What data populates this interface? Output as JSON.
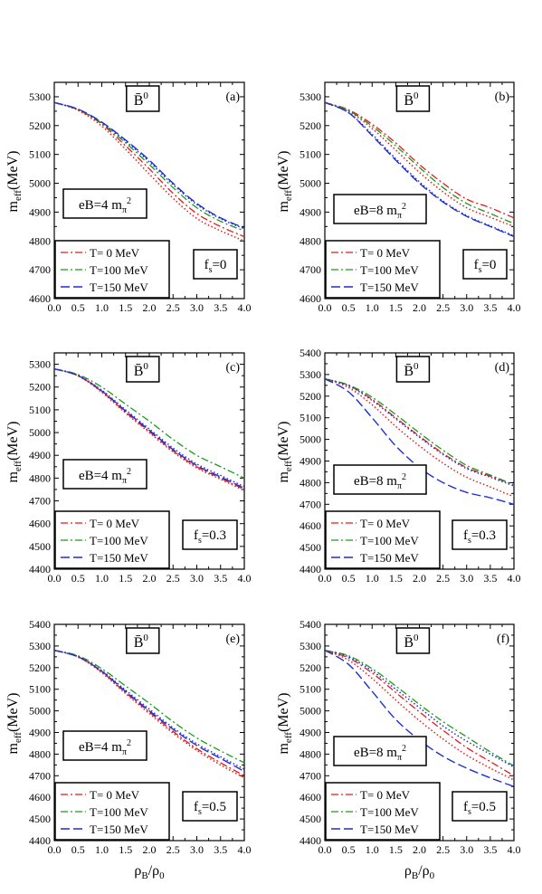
{
  "figure": {
    "xlabel": "ρB/ρ0",
    "ylabel": "meff(MeV)",
    "particle_label": "B̄0",
    "legend": [
      "T= 0 MeV",
      "T=100 MeV",
      "T=150 MeV"
    ],
    "series_colors": {
      "T= 0 MeV": "#e41a1c",
      "T=100 MeV": "#1a9a1a",
      "T=150 MeV": "#1f2fd0"
    }
  },
  "chart_data": [
    {
      "type": "line",
      "panel_label": "(a)",
      "eB_label": "eB=4 mπ2",
      "fs_label": "fs=0",
      "xlim": [
        0,
        4
      ],
      "ylim": [
        4600,
        5350
      ],
      "xticks": [
        "0.0",
        "0.5",
        "1.0",
        "1.5",
        "2.0",
        "2.5",
        "3.0",
        "3.5",
        "4.0"
      ],
      "yticks": [
        "4600",
        "4700",
        "4800",
        "4900",
        "5000",
        "5100",
        "5200",
        "5300"
      ],
      "x": [
        0,
        0.5,
        1.0,
        1.5,
        2.0,
        2.5,
        3.0,
        3.5,
        4.0
      ],
      "series": [
        {
          "name": "T= 0 MeV",
          "style": "dashdot",
          "values": [
            5280,
            5255,
            5205,
            5130,
            5050,
            4965,
            4895,
            4850,
            4815
          ]
        },
        {
          "name": "T=100 MeV",
          "style": "dashdot",
          "values": [
            5280,
            5256,
            5208,
            5140,
            5065,
            4985,
            4915,
            4868,
            4835
          ]
        },
        {
          "name": "T=150 MeV",
          "style": "dash",
          "values": [
            5280,
            5257,
            5212,
            5150,
            5080,
            5000,
            4930,
            4880,
            4845
          ]
        },
        {
          "name": "",
          "style": "dot",
          "values": [
            5280,
            5253,
            5198,
            5118,
            5032,
            4948,
            4878,
            4835,
            4800
          ]
        },
        {
          "name": "",
          "style": "dot",
          "values": [
            5280,
            5256,
            5210,
            5146,
            5074,
            4995,
            4926,
            4877,
            4842
          ]
        }
      ]
    },
    {
      "type": "line",
      "panel_label": "(b)",
      "eB_label": "eB=8 mπ2",
      "fs_label": "fs=0",
      "xlim": [
        0,
        4
      ],
      "ylim": [
        4600,
        5350
      ],
      "xticks": [
        "0.0",
        "0.5",
        "1.0",
        "1.5",
        "2.0",
        "2.5",
        "3.0",
        "3.5",
        "4.0"
      ],
      "yticks": [
        "4600",
        "4700",
        "4800",
        "4900",
        "5000",
        "5100",
        "5200",
        "5300"
      ],
      "x": [
        0,
        0.5,
        1.0,
        1.5,
        2.0,
        2.5,
        3.0,
        3.5,
        4.0
      ],
      "series": [
        {
          "name": "T= 0 MeV",
          "style": "dashdot",
          "values": [
            5280,
            5255,
            5205,
            5140,
            5065,
            5000,
            4945,
            4915,
            4880
          ]
        },
        {
          "name": "T=100 MeV",
          "style": "dashdot",
          "values": [
            5280,
            5252,
            5198,
            5130,
            5055,
            4985,
            4930,
            4895,
            4860
          ]
        },
        {
          "name": "T=150 MeV",
          "style": "dash",
          "values": [
            5280,
            5245,
            5165,
            5080,
            5000,
            4935,
            4885,
            4850,
            4815
          ]
        },
        {
          "name": "",
          "style": "dot",
          "values": [
            5280,
            5250,
            5190,
            5115,
            5038,
            4970,
            4915,
            4882,
            4850
          ]
        },
        {
          "name": "",
          "style": "dot",
          "values": [
            5280,
            5245,
            5170,
            5085,
            5005,
            4938,
            4888,
            4852,
            4818
          ]
        }
      ]
    },
    {
      "type": "line",
      "panel_label": "(c)",
      "eB_label": "eB=4 mπ2",
      "fs_label": "fs=0.3",
      "xlim": [
        0,
        4
      ],
      "ylim": [
        4400,
        5350
      ],
      "xticks": [
        "0.0",
        "0.5",
        "1.0",
        "1.5",
        "2.0",
        "2.5",
        "3.0",
        "3.5",
        "4.0"
      ],
      "yticks": [
        "4400",
        "4500",
        "4600",
        "4700",
        "4800",
        "4900",
        "5000",
        "5100",
        "5200",
        "5300"
      ],
      "x": [
        0,
        0.5,
        1.0,
        1.5,
        2.0,
        2.5,
        3.0,
        3.5,
        4.0
      ],
      "series": [
        {
          "name": "T= 0 MeV",
          "style": "dashdot",
          "values": [
            5280,
            5250,
            5180,
            5090,
            5005,
            4920,
            4850,
            4800,
            4750
          ]
        },
        {
          "name": "T=100 MeV",
          "style": "dashdot",
          "values": [
            5280,
            5255,
            5200,
            5125,
            5050,
            4970,
            4900,
            4850,
            4800
          ]
        },
        {
          "name": "T=150 MeV",
          "style": "dash",
          "values": [
            5280,
            5250,
            5183,
            5095,
            5010,
            4925,
            4855,
            4805,
            4755
          ]
        },
        {
          "name": "",
          "style": "dot",
          "values": [
            5280,
            5249,
            5177,
            5086,
            5000,
            4915,
            4845,
            4795,
            4745
          ]
        },
        {
          "name": "",
          "style": "dot",
          "values": [
            5280,
            5251,
            5186,
            5100,
            5016,
            4932,
            4862,
            4812,
            4762
          ]
        }
      ]
    },
    {
      "type": "line",
      "panel_label": "(d)",
      "eB_label": "eB=8 mπ2",
      "fs_label": "fs=0.3",
      "xlim": [
        0,
        4
      ],
      "ylim": [
        4400,
        5400
      ],
      "xticks": [
        "0.0",
        "0.5",
        "1.0",
        "1.5",
        "2.0",
        "2.5",
        "3.0",
        "3.5",
        "4.0"
      ],
      "yticks": [
        "4400",
        "4500",
        "4600",
        "4700",
        "4800",
        "4900",
        "5000",
        "5100",
        "5200",
        "5300",
        "5400"
      ],
      "x": [
        0,
        0.5,
        1.0,
        1.5,
        2.0,
        2.5,
        3.0,
        3.5,
        4.0
      ],
      "series": [
        {
          "name": "T= 0 MeV",
          "style": "dashdot",
          "values": [
            5280,
            5250,
            5185,
            5100,
            5015,
            4935,
            4870,
            4830,
            4790
          ]
        },
        {
          "name": "T=100 MeV",
          "style": "dashdot",
          "values": [
            5280,
            5252,
            5195,
            5115,
            5030,
            4950,
            4880,
            4835,
            4790
          ]
        },
        {
          "name": "T=150 MeV",
          "style": "dash",
          "values": [
            5280,
            5220,
            5100,
            4970,
            4870,
            4800,
            4755,
            4730,
            4700
          ]
        },
        {
          "name": "",
          "style": "dot",
          "values": [
            5280,
            5240,
            5160,
            5060,
            4970,
            4890,
            4825,
            4780,
            4735
          ]
        },
        {
          "name": "",
          "style": "dot",
          "values": [
            5280,
            5248,
            5180,
            5095,
            5010,
            4930,
            4865,
            4825,
            4785
          ]
        }
      ]
    },
    {
      "type": "line",
      "panel_label": "(e)",
      "eB_label": "eB=4 mπ2",
      "fs_label": "fs=0.5",
      "xlim": [
        0,
        4
      ],
      "ylim": [
        4400,
        5400
      ],
      "xticks": [
        "0.0",
        "0.5",
        "1.0",
        "1.5",
        "2.0",
        "2.5",
        "3.0",
        "3.5",
        "4.0"
      ],
      "yticks": [
        "4400",
        "4500",
        "4600",
        "4700",
        "4800",
        "4900",
        "5000",
        "5100",
        "5200",
        "5300",
        "5400"
      ],
      "x": [
        0,
        0.5,
        1.0,
        1.5,
        2.0,
        2.5,
        3.0,
        3.5,
        4.0
      ],
      "series": [
        {
          "name": "T= 0 MeV",
          "style": "dashdot",
          "values": [
            5280,
            5250,
            5180,
            5085,
            4995,
            4905,
            4825,
            4760,
            4700
          ]
        },
        {
          "name": "T=100 MeV",
          "style": "dashdot",
          "values": [
            5280,
            5255,
            5195,
            5115,
            5035,
            4950,
            4875,
            4815,
            4760
          ]
        },
        {
          "name": "T=150 MeV",
          "style": "dash",
          "values": [
            5280,
            5250,
            5183,
            5090,
            5000,
            4915,
            4840,
            4780,
            4720
          ]
        },
        {
          "name": "",
          "style": "dot",
          "values": [
            5280,
            5249,
            5176,
            5080,
            4988,
            4897,
            4817,
            4750,
            4690
          ]
        },
        {
          "name": "",
          "style": "dot",
          "values": [
            5280,
            5251,
            5186,
            5096,
            5008,
            4922,
            4848,
            4788,
            4730
          ]
        }
      ]
    },
    {
      "type": "line",
      "panel_label": "(f)",
      "eB_label": "eB=8 mπ2",
      "fs_label": "fs=0.5",
      "xlim": [
        0,
        4
      ],
      "ylim": [
        4400,
        5400
      ],
      "xticks": [
        "0.0",
        "0.5",
        "1.0",
        "1.5",
        "2.0",
        "2.5",
        "3.0",
        "3.5",
        "4.0"
      ],
      "yticks": [
        "4400",
        "4500",
        "4600",
        "4700",
        "4800",
        "4900",
        "5000",
        "5100",
        "5200",
        "5300",
        "5400"
      ],
      "x": [
        0,
        0.5,
        1.0,
        1.5,
        2.0,
        2.5,
        3.0,
        3.5,
        4.0
      ],
      "series": [
        {
          "name": "T= 0 MeV",
          "style": "dashdot",
          "values": [
            5280,
            5245,
            5175,
            5085,
            4995,
            4910,
            4830,
            4765,
            4700
          ]
        },
        {
          "name": "T=100 MeV",
          "style": "dashdot",
          "values": [
            5280,
            5255,
            5195,
            5115,
            5030,
            4950,
            4880,
            4810,
            4745
          ]
        },
        {
          "name": "T=150 MeV",
          "style": "dash",
          "values": [
            5280,
            5215,
            5090,
            4960,
            4865,
            4790,
            4735,
            4690,
            4650
          ]
        },
        {
          "name": "",
          "style": "dot",
          "values": [
            5280,
            5235,
            5150,
            5050,
            4955,
            4870,
            4795,
            4735,
            4680
          ]
        },
        {
          "name": "",
          "style": "dot",
          "values": [
            5280,
            5250,
            5185,
            5100,
            5015,
            4930,
            4860,
            4800,
            4740
          ]
        }
      ]
    }
  ]
}
